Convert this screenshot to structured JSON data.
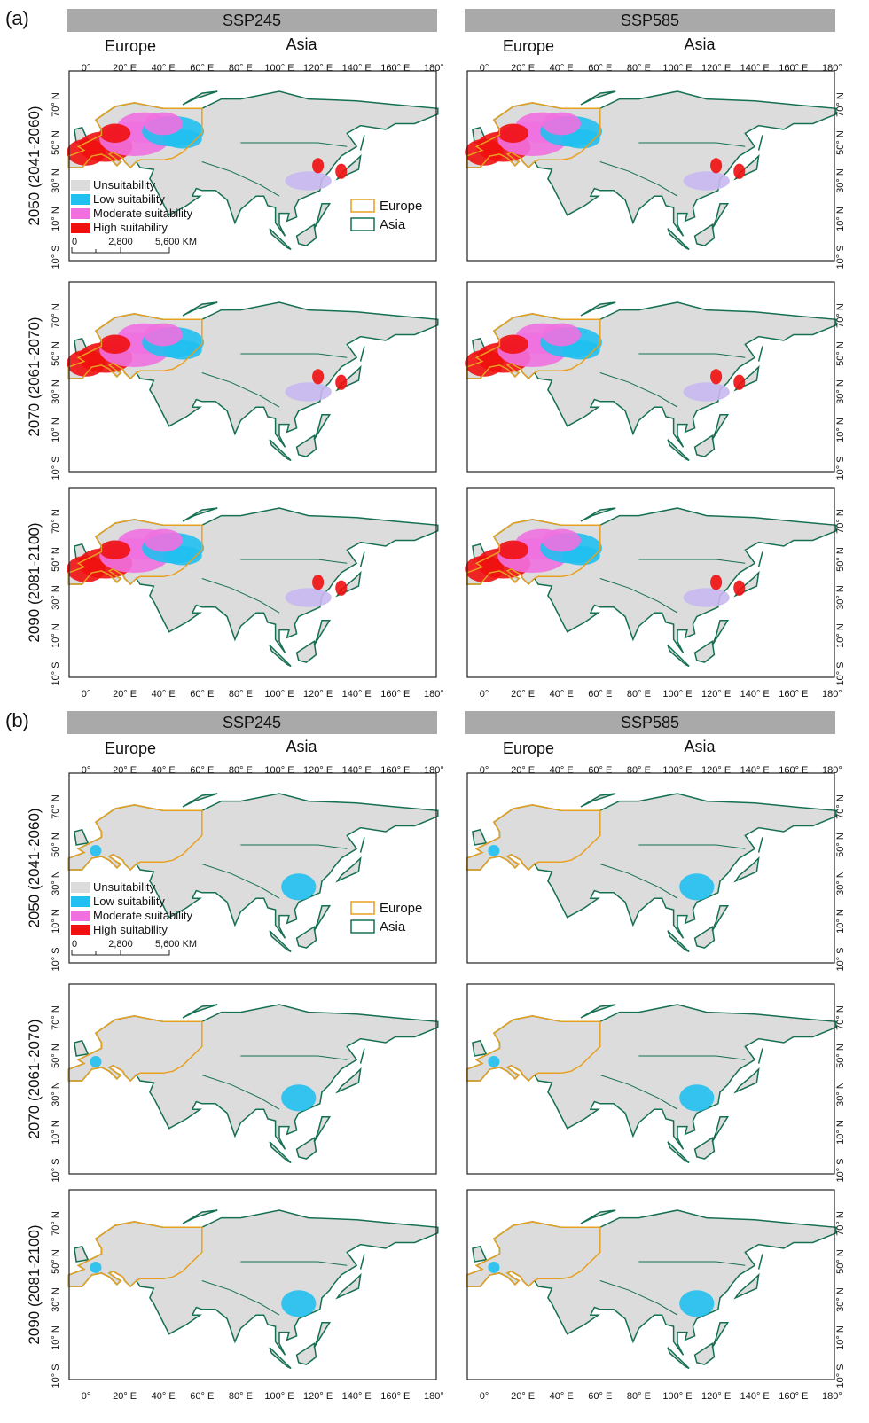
{
  "parts": [
    {
      "label": "(a)",
      "scenarios": [
        "SSP245",
        "SSP585"
      ],
      "regions": [
        "Europe",
        "Asia"
      ],
      "periods": [
        "2050 (2041-2060)",
        "2070 (2061-2070)",
        "2090 (2081-2100)"
      ]
    },
    {
      "label": "(b)",
      "scenarios": [
        "SSP245",
        "SSP585"
      ],
      "regions": [
        "Europe",
        "Asia"
      ],
      "periods": [
        "2050 (2041-2060)",
        "2070 (2061-2070)",
        "2090 (2081-2100)"
      ]
    }
  ],
  "lon_ticks": [
    "0°",
    "20° E",
    "40° E",
    "60° E",
    "80° E",
    "100° E",
    "120° E",
    "140° E",
    "160° E",
    "180°"
  ],
  "lat_ticks": [
    "70° N",
    "50° N",
    "30° N",
    "10° N",
    "10° S"
  ],
  "legend": {
    "classes": [
      {
        "label": "Unsuitability",
        "color": "#dcdcdc"
      },
      {
        "label": "Low suitability",
        "color": "#20c0f0"
      },
      {
        "label": "Moderate suitability",
        "color": "#f070e0"
      },
      {
        "label": "High suitability",
        "color": "#f01010"
      }
    ],
    "regions": [
      {
        "label": "Europe",
        "color": "#e8a020"
      },
      {
        "label": "Asia",
        "color": "#157050"
      }
    ],
    "scale": [
      "0",
      "2,800",
      "5,600 KM"
    ]
  }
}
